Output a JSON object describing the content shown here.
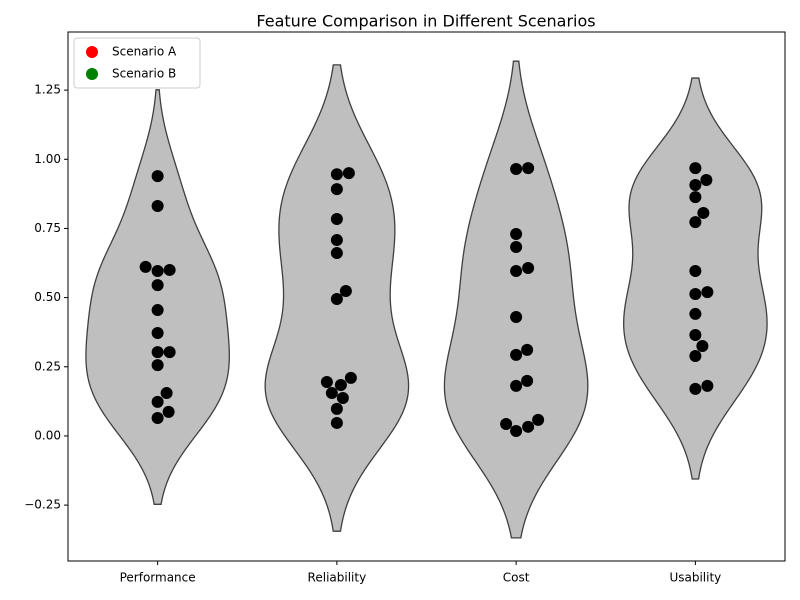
{
  "chart_data": {
    "type": "violin",
    "title": "Feature Comparison in Different Scenarios",
    "categories": [
      "Performance",
      "Reliability",
      "Cost",
      "Usability"
    ],
    "values": [
      [
        0.939,
        0.831,
        0.611,
        0.596,
        0.6,
        0.545,
        0.455,
        0.372,
        0.303,
        0.303,
        0.256,
        0.155,
        0.123,
        0.087,
        0.065
      ],
      [
        0.95,
        0.946,
        0.892,
        0.784,
        0.708,
        0.661,
        0.524,
        0.495,
        0.21,
        0.195,
        0.184,
        0.155,
        0.137,
        0.098,
        0.047
      ],
      [
        0.965,
        0.968,
        0.73,
        0.683,
        0.607,
        0.596,
        0.43,
        0.311,
        0.293,
        0.199,
        0.181,
        0.058,
        0.043,
        0.033,
        0.018
      ],
      [
        0.968,
        0.925,
        0.907,
        0.863,
        0.806,
        0.773,
        0.596,
        0.52,
        0.513,
        0.441,
        0.365,
        0.325,
        0.289,
        0.181,
        0.17
      ]
    ],
    "violin_color": "#bfbfbf",
    "point_color": "#000000",
    "legend": [
      {
        "name": "Scenario A",
        "color": "#ff0000"
      },
      {
        "name": "Scenario B",
        "color": "#008000"
      }
    ],
    "legend_position": "upper left",
    "ylim": [
      -0.452,
      1.46
    ],
    "yticks": [
      {
        "value": -0.25,
        "label": "−0.25"
      },
      {
        "value": 0,
        "label": "0.00"
      },
      0.25,
      {
        "value": 0.5,
        "label": "0.50"
      },
      0.75,
      {
        "value": 1,
        "label": "1.00"
      },
      1.25
    ]
  }
}
